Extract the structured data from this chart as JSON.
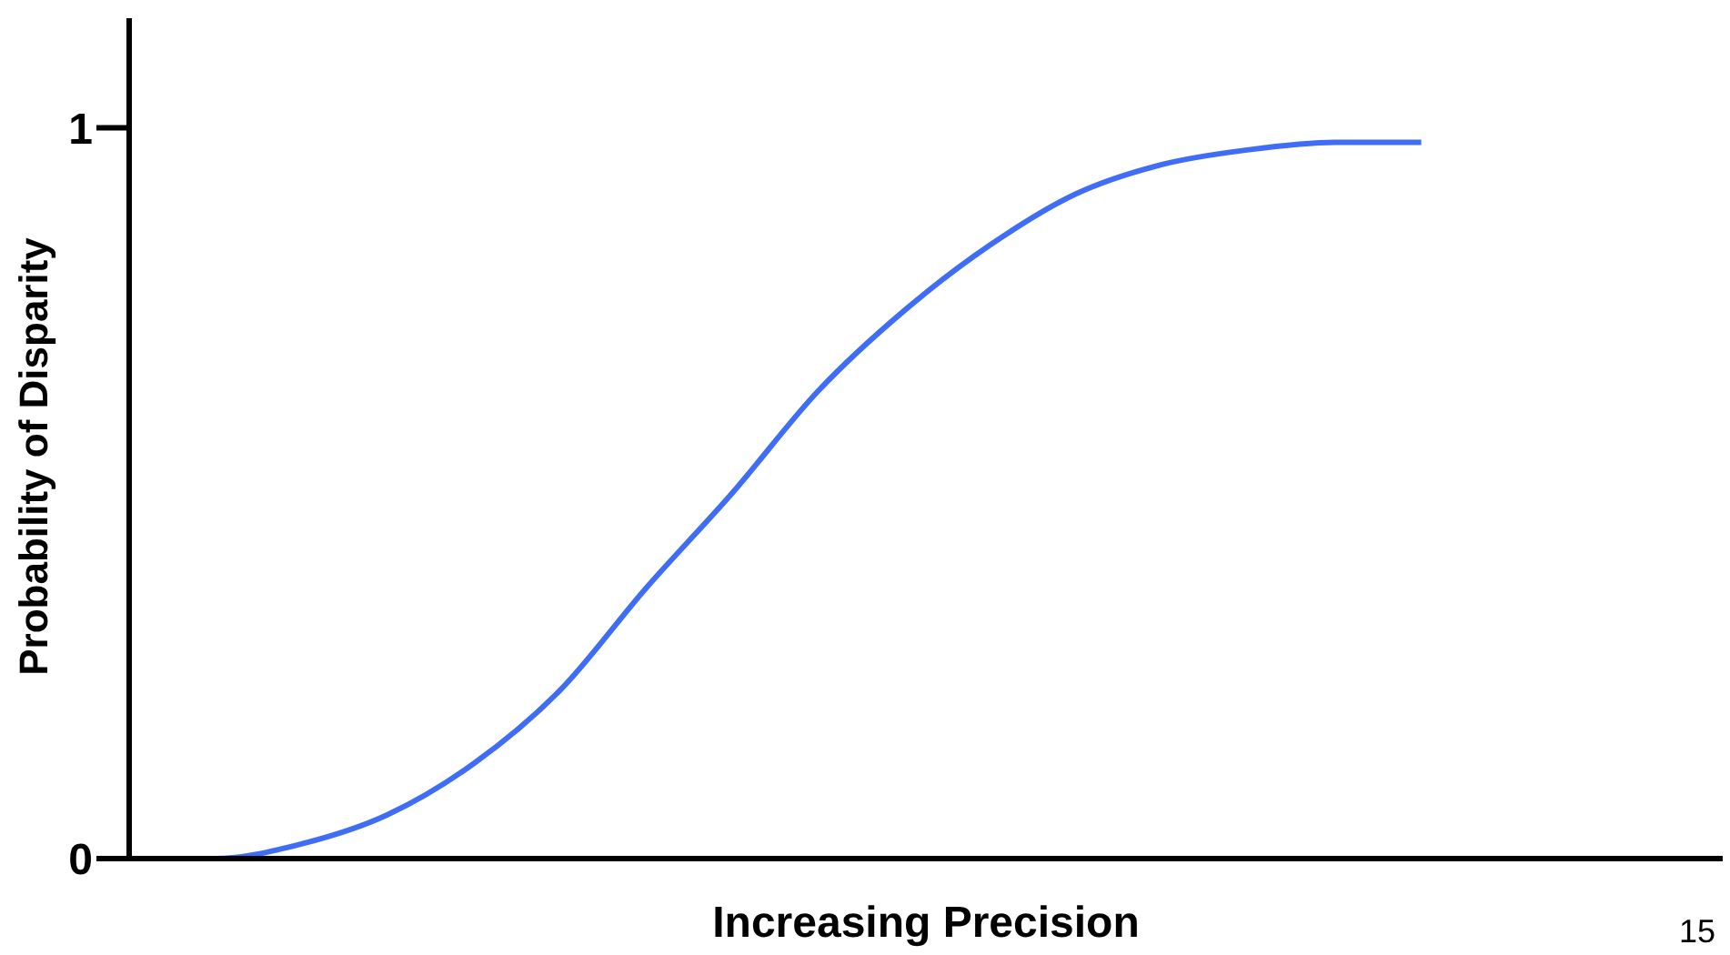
{
  "chart_data": {
    "type": "line",
    "xlabel": "Increasing Precision",
    "ylabel": "Probability of Disparity",
    "categories": [
      null,
      null,
      null,
      null,
      null,
      null,
      null,
      null,
      null,
      null,
      null,
      null,
      null,
      null,
      null,
      null,
      null,
      null,
      null
    ],
    "series": [
      {
        "color": "#3f6df5",
        "values": [
          0,
          0,
          0.02,
          0.06,
          0.13,
          0.23,
          0.37,
          0.5,
          0.64,
          0.75,
          0.84,
          0.91,
          0.95,
          0.97,
          0.98,
          0.98,
          null,
          null,
          null
        ]
      }
    ],
    "ylim": [
      0,
      1.15
    ],
    "yticks": [
      0,
      1
    ],
    "tick_labels": "y",
    "grid": false,
    "legend": false,
    "marker": "none",
    "line_style": "solid",
    "annotations": [
      "15"
    ]
  }
}
